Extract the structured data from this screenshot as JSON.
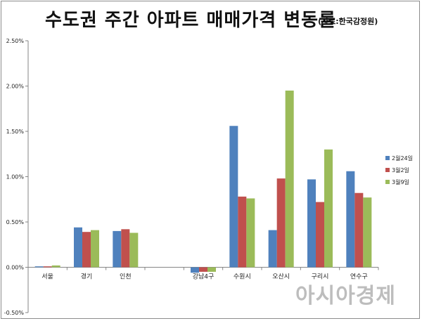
{
  "header": {
    "title": "수도권 주간 아파트 매매가격 변동률",
    "source": "(자료:한국감정원)"
  },
  "watermark": "아시아경제",
  "chart_data": {
    "type": "bar",
    "title": "수도권 주간 아파트 매매가격 변동률",
    "xlabel": "",
    "ylabel": "",
    "ylim": [
      -0.5,
      2.5
    ],
    "yticks": [
      "2.50%",
      "2.00%",
      "1.50%",
      "1.00%",
      "0.50%",
      "0.00%",
      "-0.50%"
    ],
    "categories": [
      "서울",
      "경기",
      "인천",
      "",
      "강남4구",
      "수원시",
      "오산시",
      "구리시",
      "연수구"
    ],
    "series": [
      {
        "name": "2월24일",
        "color": "#4f81bd",
        "values": [
          0.01,
          0.44,
          0.4,
          null,
          -0.06,
          1.56,
          0.41,
          0.97,
          1.06
        ]
      },
      {
        "name": "3월2일",
        "color": "#c0504d",
        "values": [
          0.01,
          0.39,
          0.42,
          null,
          -0.05,
          0.78,
          0.98,
          0.72,
          0.82
        ]
      },
      {
        "name": "3월9일",
        "color": "#9bbb59",
        "values": [
          0.02,
          0.41,
          0.38,
          null,
          -0.05,
          0.76,
          1.95,
          1.3,
          0.77
        ]
      }
    ],
    "grid": false,
    "legend": "right"
  }
}
